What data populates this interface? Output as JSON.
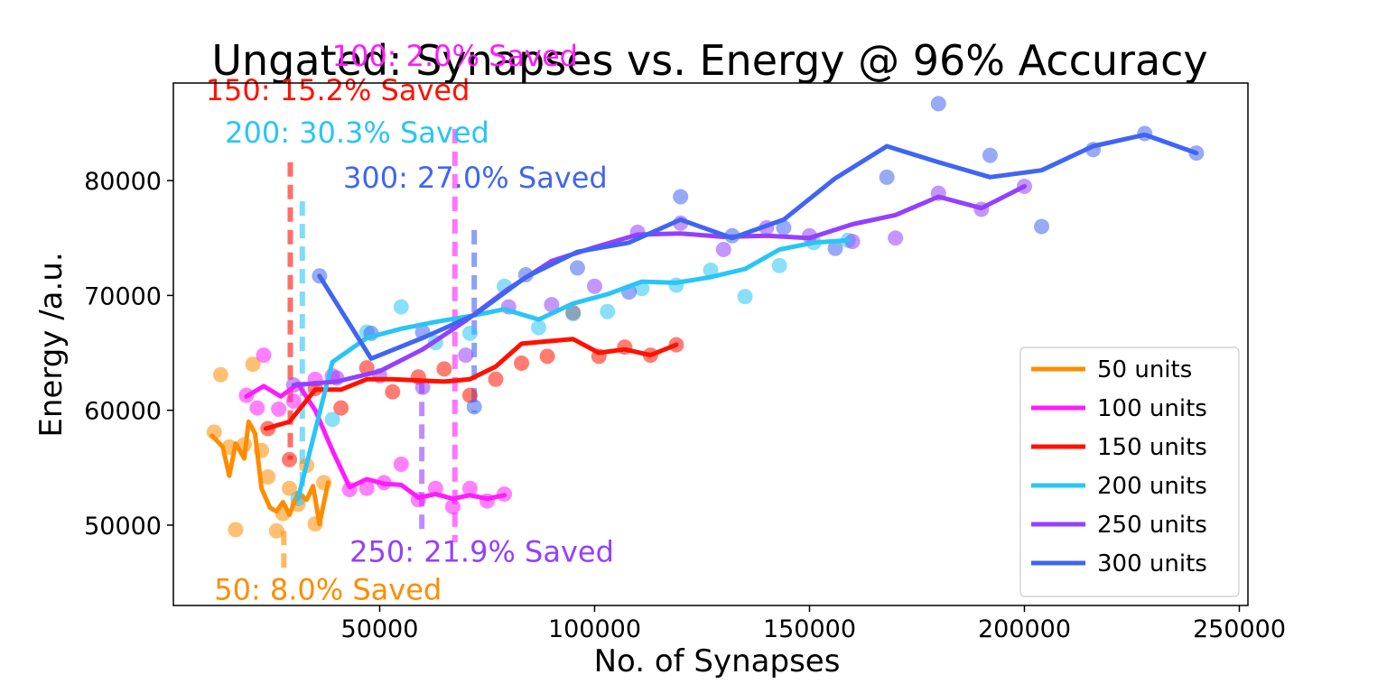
{
  "chart_data": {
    "type": "line",
    "title": "Ungated: Synapses vs. Energy @ 96% Accuracy",
    "xlabel": "No. of Synapses",
    "ylabel": "Energy /a.u.",
    "xlim": [
      2000,
      252000
    ],
    "ylim": [
      43000,
      88500
    ],
    "x_ticks": [
      50000,
      100000,
      150000,
      200000,
      250000
    ],
    "x_tick_labels": [
      "50000",
      "100000",
      "150000",
      "200000",
      "250000"
    ],
    "y_ticks": [
      50000,
      60000,
      70000,
      80000
    ],
    "y_tick_labels": [
      "50000",
      "60000",
      "70000",
      "80000"
    ],
    "grid": false,
    "legend_position": "lower-right",
    "series": [
      {
        "name": "50 units",
        "color": "#ff8c00",
        "points": [
          [
            11500,
            58100
          ],
          [
            13000,
            63100
          ],
          [
            15000,
            56800
          ],
          [
            16500,
            49600
          ],
          [
            18500,
            57000
          ],
          [
            20500,
            64000
          ],
          [
            22500,
            56500
          ],
          [
            24000,
            54200
          ],
          [
            26000,
            49500
          ],
          [
            27500,
            51000
          ],
          [
            29000,
            53200
          ],
          [
            31000,
            51800
          ],
          [
            33000,
            55200
          ],
          [
            35000,
            50100
          ],
          [
            37000,
            53700
          ]
        ],
        "line": [
          [
            11000,
            57800
          ],
          [
            13500,
            56800
          ],
          [
            15000,
            54300
          ],
          [
            16500,
            57100
          ],
          [
            18500,
            55800
          ],
          [
            19500,
            59000
          ],
          [
            21000,
            58000
          ],
          [
            22500,
            53200
          ],
          [
            24500,
            51500
          ],
          [
            26000,
            51200
          ],
          [
            27500,
            52000
          ],
          [
            29000,
            50900
          ],
          [
            31000,
            52800
          ],
          [
            33000,
            52200
          ],
          [
            34500,
            53400
          ],
          [
            36000,
            50100
          ],
          [
            38000,
            53700
          ]
        ]
      },
      {
        "name": "100 units",
        "color": "#ff1aff",
        "points": [
          [
            19000,
            61300
          ],
          [
            21500,
            60200
          ],
          [
            23000,
            64800
          ],
          [
            26500,
            60100
          ],
          [
            30000,
            60800
          ],
          [
            35000,
            62700
          ],
          [
            39000,
            63000
          ],
          [
            43000,
            53100
          ],
          [
            47000,
            53200
          ],
          [
            51000,
            53700
          ],
          [
            55000,
            55300
          ],
          [
            59000,
            52200
          ],
          [
            63000,
            53200
          ],
          [
            67000,
            51600
          ],
          [
            71000,
            53200
          ],
          [
            75000,
            52100
          ],
          [
            79000,
            52700
          ]
        ],
        "line": [
          [
            19000,
            61200
          ],
          [
            23000,
            62100
          ],
          [
            27000,
            61200
          ],
          [
            31000,
            62300
          ],
          [
            35000,
            60000
          ],
          [
            39000,
            56500
          ],
          [
            43000,
            53300
          ],
          [
            47000,
            54000
          ],
          [
            51000,
            53600
          ],
          [
            55000,
            53500
          ],
          [
            59000,
            52400
          ],
          [
            63000,
            52700
          ],
          [
            67000,
            52300
          ],
          [
            71000,
            52600
          ],
          [
            75000,
            52300
          ],
          [
            79000,
            52600
          ]
        ]
      },
      {
        "name": "150 units",
        "color": "#ff1100",
        "points": [
          [
            24000,
            58400
          ],
          [
            29000,
            55700
          ],
          [
            35000,
            61900
          ],
          [
            41000,
            60200
          ],
          [
            47000,
            63700
          ],
          [
            53000,
            61600
          ],
          [
            59000,
            62900
          ],
          [
            65000,
            63600
          ],
          [
            71000,
            61300
          ],
          [
            77000,
            62700
          ],
          [
            83000,
            64100
          ],
          [
            89000,
            64700
          ],
          [
            95000,
            68500
          ],
          [
            101000,
            64700
          ],
          [
            107000,
            65500
          ],
          [
            113000,
            64800
          ],
          [
            119000,
            65700
          ]
        ],
        "line": [
          [
            23500,
            58400
          ],
          [
            29000,
            59000
          ],
          [
            35000,
            61800
          ],
          [
            41000,
            61800
          ],
          [
            47000,
            62700
          ],
          [
            53000,
            62700
          ],
          [
            59000,
            62600
          ],
          [
            65000,
            62500
          ],
          [
            71000,
            62700
          ],
          [
            77000,
            63800
          ],
          [
            83000,
            65800
          ],
          [
            89000,
            66000
          ],
          [
            95000,
            66200
          ],
          [
            101000,
            65000
          ],
          [
            107000,
            65300
          ],
          [
            113000,
            64800
          ],
          [
            119000,
            65700
          ]
        ]
      },
      {
        "name": "200 units",
        "color": "#29c5f6",
        "points": [
          [
            31000,
            52300
          ],
          [
            39000,
            59200
          ],
          [
            47000,
            66800
          ],
          [
            55000,
            69000
          ],
          [
            63000,
            65900
          ],
          [
            71000,
            66700
          ],
          [
            79000,
            70800
          ],
          [
            87000,
            67200
          ],
          [
            95000,
            68400
          ],
          [
            103000,
            68600
          ],
          [
            111000,
            70600
          ],
          [
            119000,
            70900
          ],
          [
            127000,
            72200
          ],
          [
            135000,
            69900
          ],
          [
            143000,
            72600
          ],
          [
            151000,
            74600
          ],
          [
            159000,
            74800
          ]
        ],
        "line": [
          [
            31000,
            52300
          ],
          [
            39000,
            64200
          ],
          [
            47000,
            66300
          ],
          [
            55000,
            67100
          ],
          [
            63000,
            67700
          ],
          [
            71000,
            68200
          ],
          [
            79000,
            68800
          ],
          [
            87000,
            67900
          ],
          [
            95000,
            69300
          ],
          [
            103000,
            70100
          ],
          [
            111000,
            71200
          ],
          [
            119000,
            71100
          ],
          [
            127000,
            71600
          ],
          [
            135000,
            72300
          ],
          [
            143000,
            74000
          ],
          [
            151000,
            74600
          ],
          [
            159000,
            74800
          ]
        ]
      },
      {
        "name": "250 units",
        "color": "#9440ff",
        "points": [
          [
            30000,
            62200
          ],
          [
            40000,
            62800
          ],
          [
            50000,
            63000
          ],
          [
            60000,
            62000
          ],
          [
            70000,
            64800
          ],
          [
            80000,
            69000
          ],
          [
            90000,
            69200
          ],
          [
            100000,
            70800
          ],
          [
            110000,
            75500
          ],
          [
            120000,
            76300
          ],
          [
            130000,
            74000
          ],
          [
            140000,
            75900
          ],
          [
            150000,
            75200
          ],
          [
            160000,
            74700
          ],
          [
            170000,
            75000
          ],
          [
            180000,
            78900
          ],
          [
            190000,
            77500
          ],
          [
            200000,
            79500
          ]
        ],
        "line": [
          [
            30000,
            62200
          ],
          [
            40000,
            62500
          ],
          [
            50000,
            63400
          ],
          [
            60000,
            65300
          ],
          [
            70000,
            67800
          ],
          [
            80000,
            70600
          ],
          [
            90000,
            73000
          ],
          [
            100000,
            74200
          ],
          [
            110000,
            75300
          ],
          [
            120000,
            75400
          ],
          [
            130000,
            75100
          ],
          [
            140000,
            75200
          ],
          [
            150000,
            75000
          ],
          [
            160000,
            76200
          ],
          [
            170000,
            77000
          ],
          [
            180000,
            78600
          ],
          [
            190000,
            77600
          ],
          [
            200000,
            79500
          ]
        ]
      },
      {
        "name": "300 units",
        "color": "#4065f2",
        "points": [
          [
            36000,
            71700
          ],
          [
            48000,
            66700
          ],
          [
            60000,
            66800
          ],
          [
            72000,
            60300
          ],
          [
            84000,
            71800
          ],
          [
            96000,
            72400
          ],
          [
            108000,
            70300
          ],
          [
            120000,
            78600
          ],
          [
            132000,
            75200
          ],
          [
            144000,
            75900
          ],
          [
            156000,
            74100
          ],
          [
            168000,
            80300
          ],
          [
            180000,
            86700
          ],
          [
            192000,
            82200
          ],
          [
            204000,
            76000
          ],
          [
            216000,
            82700
          ],
          [
            228000,
            84100
          ],
          [
            240000,
            82400
          ]
        ],
        "line": [
          [
            36000,
            71700
          ],
          [
            48000,
            64500
          ],
          [
            60000,
            66300
          ],
          [
            72000,
            68300
          ],
          [
            84000,
            71600
          ],
          [
            96000,
            73800
          ],
          [
            108000,
            74600
          ],
          [
            120000,
            76600
          ],
          [
            132000,
            75000
          ],
          [
            144000,
            76600
          ],
          [
            156000,
            80200
          ],
          [
            168000,
            83000
          ],
          [
            180000,
            81600
          ],
          [
            192000,
            80300
          ],
          [
            204000,
            80900
          ],
          [
            216000,
            83000
          ],
          [
            228000,
            84000
          ],
          [
            240000,
            82400
          ]
        ]
      }
    ],
    "annotations": [
      {
        "text": "100: 2.0% Saved",
        "color": "#ff1aff",
        "x": 67500,
        "y": 90000,
        "anchor": "middle",
        "vline": {
          "x": 67500,
          "y_top": 84500,
          "y_bottom": 48500
        }
      },
      {
        "text": "150: 15.2% Saved",
        "color": "#ff1100",
        "x": 9500,
        "y": 87000,
        "anchor": "start",
        "vline": {
          "x": 29200,
          "y_top": 81600,
          "y_bottom": 55700
        }
      },
      {
        "text": "200: 30.3% Saved",
        "color": "#29c5f6",
        "x": 14000,
        "y": 83300,
        "anchor": "start",
        "vline": {
          "x": 32000,
          "y_top": 78200,
          "y_bottom": 52500
        }
      },
      {
        "text": "300: 27.0% Saved",
        "color": "#4065f2",
        "x": 41500,
        "y": 79400,
        "anchor": "start",
        "vline": {
          "x": 72000,
          "y_top": 75700,
          "y_bottom": 59800
        }
      },
      {
        "text": "250: 21.9% Saved",
        "color": "#9440ff",
        "x": 43000,
        "y": 46800,
        "anchor": "start",
        "vline": {
          "x": 59800,
          "y_top": 62700,
          "y_bottom": 49500
        }
      },
      {
        "text": "50: 8.0% Saved",
        "color": "#ff8c00",
        "x": 11500,
        "y": 43500,
        "anchor": "start",
        "vline": {
          "x": 27700,
          "y_top": 49500,
          "y_bottom": 46200
        }
      }
    ]
  }
}
